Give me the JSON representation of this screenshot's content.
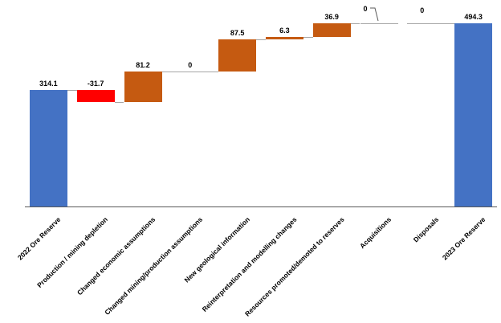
{
  "chart_data": {
    "type": "waterfall",
    "title": "",
    "xlabel": "",
    "ylabel": "",
    "legend": "none",
    "gridlines": false,
    "ylim": [
      0,
      494.3
    ],
    "categories": [
      "2022 Ore Reserve",
      "Production / mining depletion",
      "Changed economic assumptions",
      "Changed mining/production assumptions",
      "New geological information",
      "Reinterpretation and modelling changes",
      "Resources promoted/demoted to reserves",
      "Acquisitions",
      "Disposals",
      "2023 Ore Reserve"
    ],
    "values": [
      314.1,
      -31.7,
      81.2,
      0,
      87.5,
      6.3,
      36.9,
      0,
      0,
      494.3
    ],
    "data_labels": [
      "314.1",
      "-31.7",
      "81.2",
      "0",
      "87.5",
      "6.3",
      "36.9",
      "0",
      "0",
      "494.3"
    ],
    "point_types": [
      "total",
      "decrease",
      "increase",
      "zero",
      "increase",
      "increase",
      "increase",
      "zero",
      "zero",
      "total"
    ],
    "cumulative_after": [
      314.1,
      282.4,
      363.6,
      363.6,
      451.1,
      457.4,
      494.3,
      494.3,
      494.3,
      494.3
    ],
    "colors": {
      "total": "#4472C4",
      "increase": "#C55A11",
      "decrease": "#FF0000",
      "connector": "#A6A6A6",
      "axis": "#595959",
      "data_label": "#000000",
      "leader_line": "#595959"
    },
    "label_leader_line_category": "Acquisitions"
  }
}
